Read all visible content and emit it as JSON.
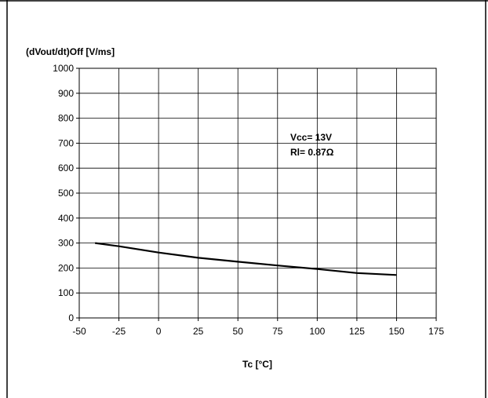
{
  "chart_data": {
    "type": "line",
    "title": "",
    "ylabel": "(dVout/dt)Off [V/ms]",
    "xlabel": "Tc [°C]",
    "xlim": [
      -50,
      175
    ],
    "ylim": [
      0,
      1000
    ],
    "x_ticks": [
      "-50",
      "-25",
      "0",
      "25",
      "50",
      "75",
      "100",
      "125",
      "150",
      "175"
    ],
    "y_ticks": [
      "0",
      "100",
      "200",
      "300",
      "400",
      "500",
      "600",
      "700",
      "800",
      "900",
      "1000"
    ],
    "grid": true,
    "legend": "none",
    "annotations": [
      "Vcc= 13V",
      "Rl= 0.87Ω"
    ],
    "series": [
      {
        "x": [
          -40,
          -25,
          0,
          25,
          50,
          75,
          100,
          125,
          150
        ],
        "y": [
          300,
          287,
          262,
          241,
          225,
          210,
          196,
          180,
          172
        ]
      }
    ],
    "line_color": "#000000",
    "grid_color": "#000000"
  }
}
